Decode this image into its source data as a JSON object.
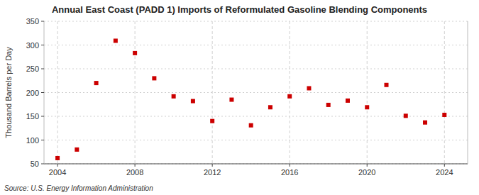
{
  "chart_data": {
    "type": "scatter",
    "title": "Annual East Coast (PADD 1) Imports of Reformulated Gasoline Blending Components",
    "ylabel": "Thousand Barrels per Day",
    "source": "Source: U.S. Energy Information Administration",
    "x": [
      2004,
      2005,
      2006,
      2007,
      2008,
      2009,
      2010,
      2011,
      2012,
      2013,
      2014,
      2015,
      2016,
      2017,
      2018,
      2019,
      2020,
      2021,
      2022,
      2023,
      2024
    ],
    "values": [
      62,
      80,
      220,
      309,
      283,
      230,
      192,
      182,
      140,
      185,
      131,
      169,
      192,
      209,
      174,
      183,
      169,
      216,
      151,
      137,
      153
    ],
    "color": "#cc0000",
    "marker": "square",
    "xlim": [
      2003.3,
      2025.2
    ],
    "xticks": [
      2004,
      2008,
      2012,
      2016,
      2020,
      2024
    ],
    "ylim": [
      50,
      350
    ],
    "yticks": [
      50,
      100,
      150,
      200,
      250,
      300,
      350
    ],
    "grid": true
  }
}
